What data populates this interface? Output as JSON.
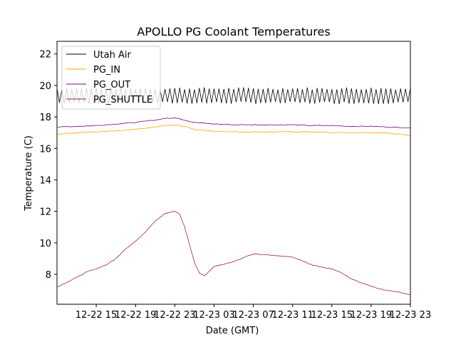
{
  "chart_data": {
    "type": "line",
    "title": "APOLLO PG Coolant Temperatures",
    "xlabel": "Date (GMT)",
    "ylabel": "Temperature (C)",
    "x_unit": "hours since 12-22 11:00 GMT",
    "xlim": [
      0,
      36
    ],
    "ylim": [
      6.1,
      22.8
    ],
    "x_ticks": [
      {
        "value": 4,
        "label": "12-22 15"
      },
      {
        "value": 8,
        "label": "12-22 19"
      },
      {
        "value": 12,
        "label": "12-22 23"
      },
      {
        "value": 16,
        "label": "12-23 03"
      },
      {
        "value": 20,
        "label": "12-23 07"
      },
      {
        "value": 24,
        "label": "12-23 11"
      },
      {
        "value": 28,
        "label": "12-23 15"
      },
      {
        "value": 32,
        "label": "12-23 19"
      },
      {
        "value": 36,
        "label": "12-23 23"
      }
    ],
    "y_ticks": [
      {
        "value": 8,
        "label": "8"
      },
      {
        "value": 10,
        "label": "10"
      },
      {
        "value": 12,
        "label": "12"
      },
      {
        "value": 14,
        "label": "14"
      },
      {
        "value": 16,
        "label": "16"
      },
      {
        "value": 18,
        "label": "18"
      },
      {
        "value": 20,
        "label": "20"
      },
      {
        "value": 22,
        "label": "22"
      }
    ],
    "grid": false,
    "legend_position": "top-left",
    "series": [
      {
        "name": "Utah Air",
        "color": "#000000",
        "style": "oscillating",
        "oscillation": {
          "min": 18.8,
          "max": 19.9,
          "period_hours": 0.5
        },
        "x": [
          0,
          36
        ],
        "y": [
          19.35,
          19.35
        ]
      },
      {
        "name": "PG_IN",
        "color": "#ffa500",
        "x": [
          0,
          2,
          4,
          6,
          8,
          10,
          11,
          12,
          13,
          14,
          16,
          18,
          20,
          22,
          24,
          26,
          28,
          30,
          32,
          34,
          36
        ],
        "y": [
          16.9,
          17.0,
          17.05,
          17.1,
          17.2,
          17.35,
          17.45,
          17.5,
          17.4,
          17.2,
          17.1,
          17.05,
          17.05,
          17.05,
          17.05,
          17.05,
          17.0,
          17.0,
          17.0,
          16.95,
          16.85
        ]
      },
      {
        "name": "PG_OUT",
        "color": "#800080",
        "x": [
          0,
          2,
          4,
          6,
          8,
          10,
          11,
          12,
          13,
          14,
          16,
          18,
          20,
          22,
          24,
          26,
          28,
          30,
          32,
          34,
          36
        ],
        "y": [
          17.35,
          17.4,
          17.45,
          17.55,
          17.65,
          17.8,
          17.9,
          17.95,
          17.8,
          17.65,
          17.55,
          17.5,
          17.5,
          17.5,
          17.5,
          17.45,
          17.45,
          17.4,
          17.4,
          17.35,
          17.3
        ]
      },
      {
        "name": "PG_SHUTTLE",
        "color": "#a52a2a",
        "x": [
          0,
          1,
          2,
          3,
          4,
          5,
          6,
          7,
          8,
          9,
          10,
          11,
          11.5,
          12,
          12.5,
          13,
          13.5,
          14,
          14.5,
          15,
          15.5,
          16,
          17,
          18,
          19,
          20,
          21,
          22,
          23,
          24,
          25,
          26,
          27,
          28,
          29,
          30,
          31,
          32,
          33,
          34,
          35,
          36
        ],
        "y": [
          7.2,
          7.5,
          7.8,
          8.15,
          8.35,
          8.6,
          9.0,
          9.6,
          10.1,
          10.7,
          11.4,
          11.85,
          11.95,
          12.0,
          11.8,
          11.0,
          9.9,
          8.75,
          8.1,
          7.9,
          8.2,
          8.5,
          8.65,
          8.8,
          9.05,
          9.3,
          9.25,
          9.2,
          9.15,
          9.1,
          8.85,
          8.6,
          8.45,
          8.35,
          8.1,
          7.7,
          7.45,
          7.25,
          7.05,
          6.95,
          6.85,
          6.7
        ]
      }
    ]
  }
}
